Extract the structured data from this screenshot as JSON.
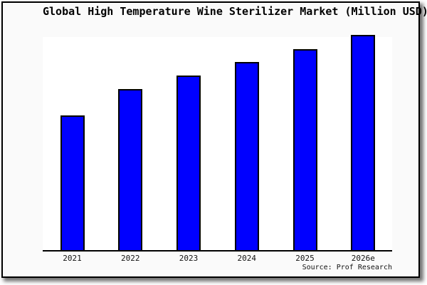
{
  "window": {
    "title": "Global High Temperature Wine Sterilizer Market (Million USD)",
    "source_credit": "Source: Prof Research"
  },
  "chart_data": {
    "type": "bar",
    "title": "Global High Temperature Wine Sterilizer Market (Million USD)",
    "categories": [
      "2021",
      "2022",
      "2023",
      "2024",
      "2025",
      "2026e"
    ],
    "values": [
      189,
      226,
      245,
      264,
      282,
      302
    ],
    "values_unit": "relative bar height in px (no value axis / tick labels shown in chart)",
    "xlabel": "",
    "ylabel": "",
    "legend": "none",
    "grid": false,
    "data_labels": false,
    "source": "Source: Prof Research",
    "bar_color": "#0000ff",
    "bar_border_color": "#000000"
  },
  "colors": {
    "bar_fill": "#0000ff",
    "bar_border": "#000000",
    "window_background": "#fafafa",
    "plot_background": "#ffffff",
    "frame_border": "#000000",
    "text": "#000000"
  }
}
